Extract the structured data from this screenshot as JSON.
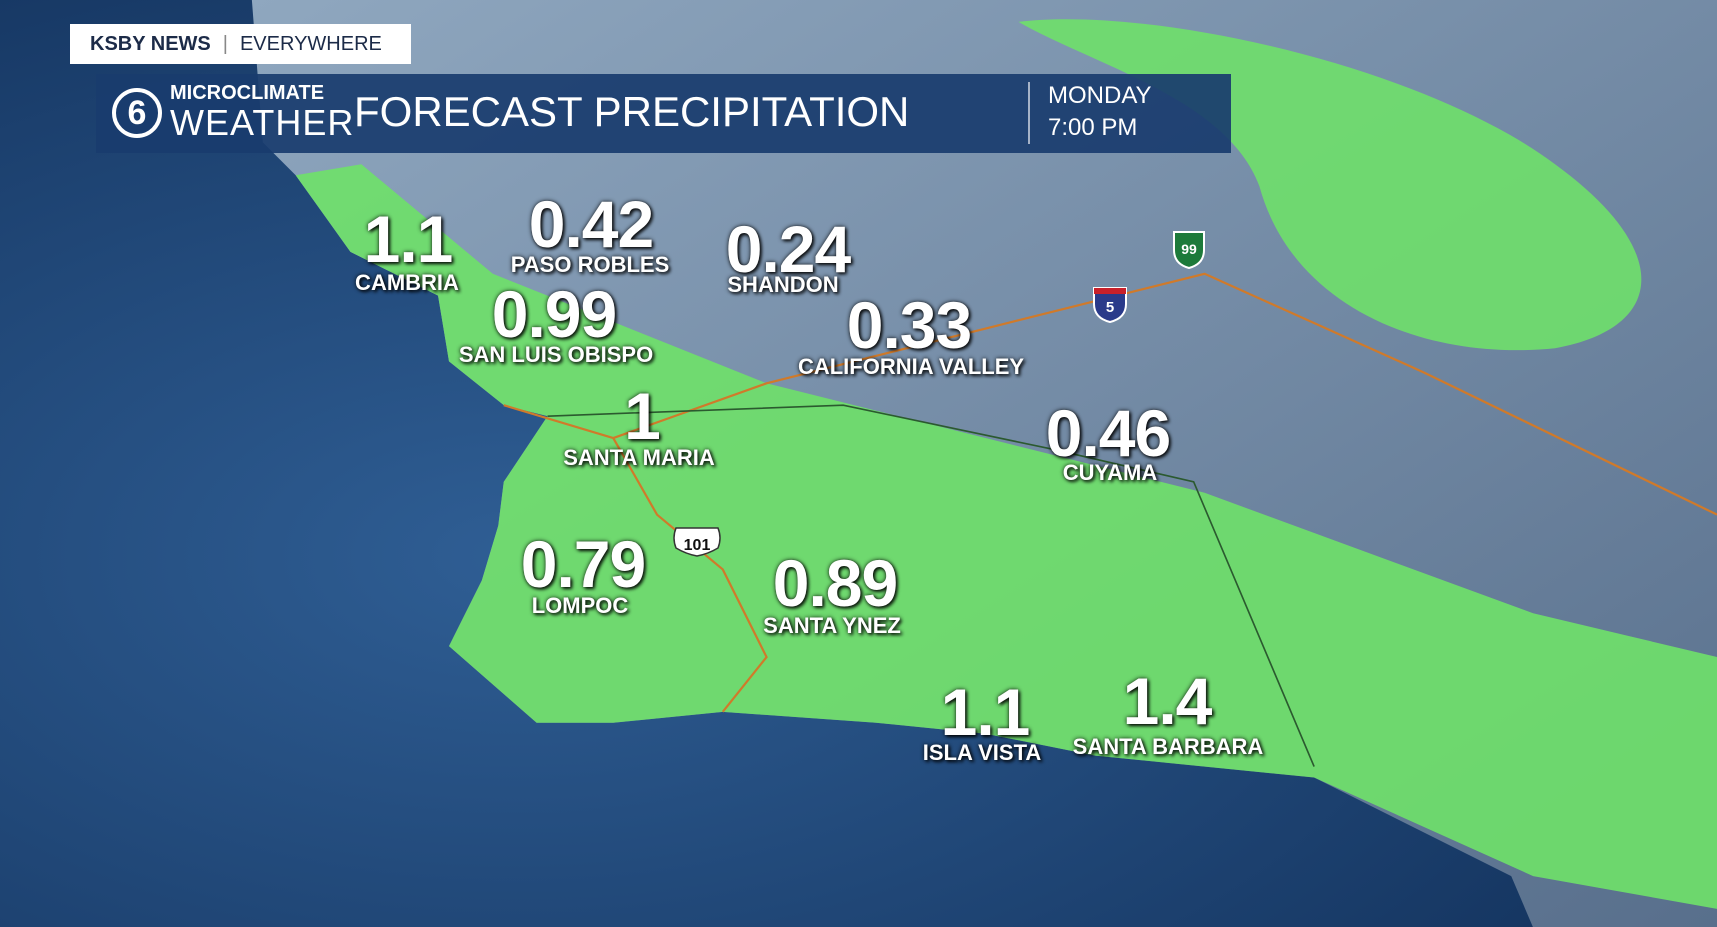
{
  "header": {
    "brand": "KSBY NEWS",
    "tagline": "EVERYWHERE",
    "logo_top": "MICROCLIMATE",
    "logo_bottom": "WEATHER",
    "title": "FORECAST PRECIPITATION",
    "day": "MONDAY",
    "time": "7:00 PM"
  },
  "shields": [
    "99",
    "5",
    "101"
  ],
  "locations": [
    {
      "name": "CAMBRIA",
      "value": 1.1
    },
    {
      "name": "PASO ROBLES",
      "value": 0.42
    },
    {
      "name": "SHANDON",
      "value": 0.24
    },
    {
      "name": "SAN LUIS OBISPO",
      "value": 0.99
    },
    {
      "name": "CALIFORNIA VALLEY",
      "value": 0.33
    },
    {
      "name": "SANTA MARIA",
      "value": 1
    },
    {
      "name": "CUYAMA",
      "value": 0.46
    },
    {
      "name": "LOMPOC",
      "value": 0.79
    },
    {
      "name": "SANTA YNEZ",
      "value": 0.89
    },
    {
      "name": "ISLA VISTA",
      "value": 1.1
    },
    {
      "name": "SANTA BARBARA",
      "value": 1.4
    }
  ]
}
